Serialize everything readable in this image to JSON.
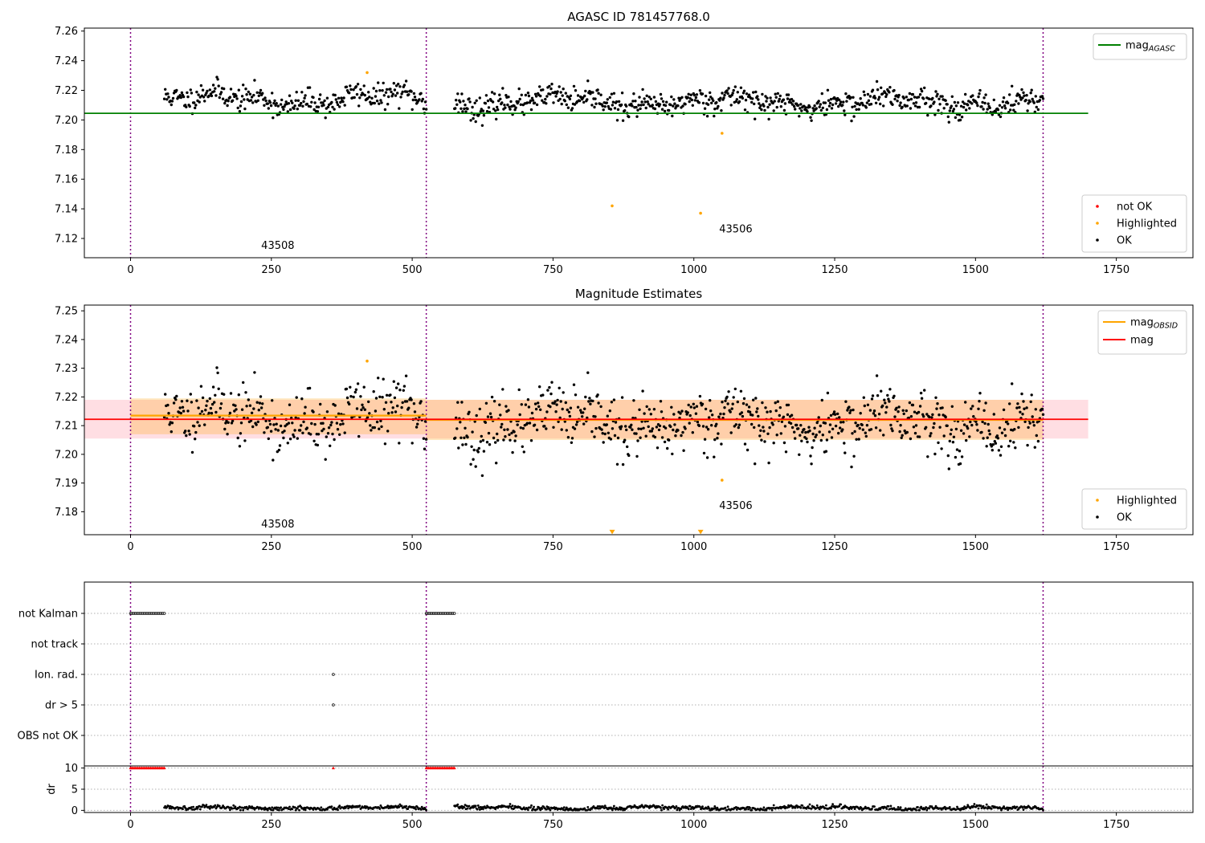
{
  "chart_data": [
    {
      "type": "scatter",
      "title": "AGASC ID 781457768.0",
      "xlim": [
        -82,
        1886
      ],
      "ylim": [
        7.107,
        7.262
      ],
      "xticks": [
        0,
        250,
        500,
        750,
        1000,
        1250,
        1500,
        1750
      ],
      "yticks": [
        7.12,
        7.14,
        7.16,
        7.18,
        7.2,
        7.22,
        7.24,
        7.26
      ],
      "grid": false,
      "vlines": [
        0,
        525,
        1620
      ],
      "obsid_labels": [
        {
          "text": "43508",
          "x": 232,
          "y": 7.113
        },
        {
          "text": "43506",
          "x": 1045,
          "y": 7.124
        }
      ],
      "series": [
        {
          "name": "OK",
          "color": "#000000",
          "kind": "points",
          "segments": [
            {
              "x0": 60,
              "x1": 525,
              "n": 300,
              "base": 7.214,
              "amp": 0.006,
              "noise": 0.004,
              "seed": 11
            },
            {
              "x0": 575,
              "x1": 1620,
              "n": 720,
              "base": 7.212,
              "amp": 0.005,
              "noise": 0.004,
              "seed": 23
            }
          ]
        },
        {
          "name": "Highlighted",
          "color": "#ffa500",
          "kind": "points",
          "x": [
            420,
            855,
            1012,
            1050
          ],
          "y": [
            7.232,
            7.142,
            7.137,
            7.191
          ]
        },
        {
          "name": "not OK",
          "color": "#ff0000",
          "kind": "points",
          "x": [],
          "y": []
        },
        {
          "name": "mag_AGASC",
          "color": "#008000",
          "kind": "hline",
          "y": 7.2045,
          "x0": -82,
          "x1": 1700
        }
      ],
      "legend": {
        "position": "top-right",
        "lines": [
          {
            "label": "mag",
            "sub": "AGASC",
            "color": "#008000"
          }
        ],
        "lower": {
          "position": "lower-right",
          "points": [
            {
              "label": "not OK",
              "color": "#ff0000"
            },
            {
              "label": "Highlighted",
              "color": "#ffa500"
            },
            {
              "label": "OK",
              "color": "#000000"
            }
          ]
        }
      }
    },
    {
      "type": "scatter",
      "title": "Magnitude Estimates",
      "xlim": [
        -82,
        1886
      ],
      "ylim": [
        7.172,
        7.252
      ],
      "xticks": [
        0,
        250,
        500,
        750,
        1000,
        1250,
        1500,
        1750
      ],
      "yticks": [
        7.18,
        7.19,
        7.2,
        7.21,
        7.22,
        7.23,
        7.24,
        7.25
      ],
      "grid": false,
      "vlines": [
        0,
        525,
        1620
      ],
      "obsid_labels": [
        {
          "text": "43508",
          "x": 232,
          "y": 7.1745
        },
        {
          "text": "43506",
          "x": 1045,
          "y": 7.181
        }
      ],
      "bands": [
        {
          "name": "mag range",
          "color": "#ffb6c1",
          "opacity": 0.45,
          "x0": -82,
          "x1": 1700,
          "y0": 7.2055,
          "y1": 7.219
        },
        {
          "name": "mag_OBSID range 43508",
          "color": "#ffa500",
          "opacity": 0.25,
          "x0": 0,
          "x1": 525,
          "y0": 7.207,
          "y1": 7.2195
        },
        {
          "name": "mag_OBSID range 43506",
          "color": "#ffa500",
          "opacity": 0.25,
          "x0": 525,
          "x1": 1620,
          "y0": 7.205,
          "y1": 7.219
        }
      ],
      "series": [
        {
          "name": "OK",
          "color": "#000000",
          "kind": "points",
          "segments": [
            {
              "x0": 60,
              "x1": 525,
              "n": 300,
              "base": 7.213,
              "amp": 0.006,
              "noise": 0.005,
              "seed": 11
            },
            {
              "x0": 575,
              "x1": 1620,
              "n": 720,
              "base": 7.211,
              "amp": 0.005,
              "noise": 0.005,
              "seed": 23
            }
          ]
        },
        {
          "name": "Highlighted",
          "color": "#ffa500",
          "kind": "points",
          "x": [
            420,
            1050
          ],
          "y": [
            7.2325,
            7.191
          ]
        },
        {
          "name": "Highlighted (below range)",
          "color": "#ffa500",
          "kind": "triangles",
          "x": [
            855,
            1012
          ],
          "y": [
            7.173,
            7.173
          ]
        },
        {
          "name": "mag_OBSID",
          "color": "#ffa500",
          "kind": "segments",
          "parts": [
            {
              "x0": 0,
              "x1": 525,
              "y": 7.2135
            },
            {
              "x0": 525,
              "x1": 1620,
              "y": 7.212
            }
          ]
        },
        {
          "name": "mag",
          "color": "#ff0000",
          "kind": "hline",
          "y": 7.2122,
          "x0": -82,
          "x1": 1700
        }
      ],
      "legend": {
        "position": "top-right",
        "lines": [
          {
            "label": "mag",
            "sub": "OBSID",
            "color": "#ffa500"
          },
          {
            "label": "mag",
            "sub": "",
            "color": "#ff0000"
          }
        ],
        "lower": {
          "position": "lower-right",
          "points": [
            {
              "label": "Highlighted",
              "color": "#ffa500"
            },
            {
              "label": "OK",
              "color": "#000000"
            }
          ]
        }
      }
    },
    {
      "type": "scatter",
      "title": "",
      "xlim": [
        -82,
        1886
      ],
      "categories": [
        "not Kalman",
        "not track",
        "Ion. rad.",
        "dr > 5",
        "OBS not OK"
      ],
      "grid": true,
      "vlines": [
        0,
        525,
        1620
      ],
      "flag_points": [
        {
          "category": "not Kalman",
          "x0": 0,
          "x1": 60,
          "n": 28
        },
        {
          "category": "not Kalman",
          "x0": 525,
          "x1": 575,
          "n": 24
        },
        {
          "category": "Ion. rad.",
          "x0": 360,
          "x1": 360,
          "n": 1
        },
        {
          "category": "dr > 5",
          "x0": 360,
          "x1": 360,
          "n": 1
        }
      ]
    },
    {
      "type": "scatter",
      "title": "",
      "xlim": [
        -82,
        1886
      ],
      "ylim": [
        -0.5,
        10.5
      ],
      "yticks": [
        0,
        5,
        10
      ],
      "xticks": [
        0,
        250,
        500,
        750,
        1000,
        1250,
        1500,
        1750
      ],
      "ylabel": "dr",
      "grid": true,
      "vlines": [
        0,
        525,
        1620
      ],
      "clipped_markers": [
        {
          "x0": 0,
          "x1": 60,
          "n": 28,
          "y": 10
        },
        {
          "x0": 360,
          "x1": 360,
          "n": 1,
          "y": 10
        },
        {
          "x0": 525,
          "x1": 575,
          "n": 24,
          "y": 10
        }
      ],
      "series": [
        {
          "name": "dr",
          "color": "#000000",
          "kind": "points",
          "segments": [
            {
              "x0": 60,
              "x1": 525,
              "n": 300,
              "base": 0.6,
              "amp": 0.3,
              "noise": 0.25,
              "seed": 5
            },
            {
              "x0": 575,
              "x1": 1620,
              "n": 720,
              "base": 0.55,
              "amp": 0.35,
              "noise": 0.25,
              "seed": 7
            }
          ]
        }
      ]
    }
  ]
}
